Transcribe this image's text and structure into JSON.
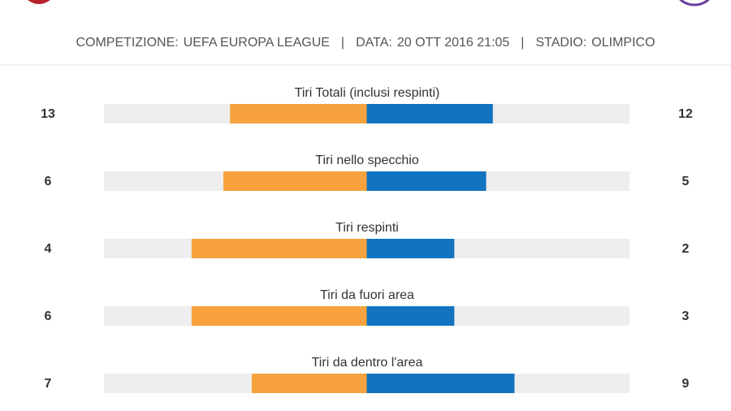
{
  "header": {
    "items": [
      {
        "label": "COMPETIZIONE:",
        "value": "UEFA EUROPA LEAGUE"
      },
      {
        "label": "DATA:",
        "value": "20 OTT 2016 21:05"
      },
      {
        "label": "STADIO:",
        "value": "OLIMPICO"
      }
    ],
    "separator": "|"
  },
  "stats": [
    {
      "title": "Tiri Totali (inclusi respinti)",
      "home": 13,
      "away": 12
    },
    {
      "title": "Tiri nello specchio",
      "home": 6,
      "away": 5
    },
    {
      "title": "Tiri respinti",
      "home": 4,
      "away": 2
    },
    {
      "title": "Tiri da fuori area",
      "home": 6,
      "away": 3
    },
    {
      "title": "Tiri da dentro l'area",
      "home": 7,
      "away": 9
    }
  ],
  "colors": {
    "home": "#f7a23c",
    "away": "#1273c0",
    "track": "#eeeeee"
  }
}
